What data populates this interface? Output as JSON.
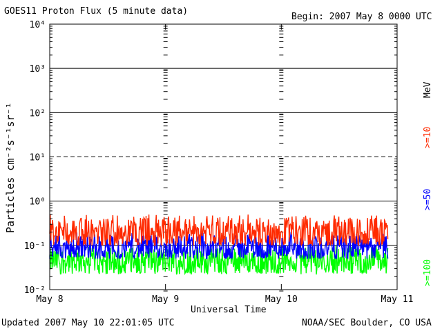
{
  "header": {
    "title": "GOES11 Proton Flux (5 minute data)",
    "begin": "Begin: 2007 May 8 0000 UTC"
  },
  "footer": {
    "updated": "Updated 2007 May 10 22:01:05 UTC",
    "credit": "NOAA/SEC Boulder, CO USA"
  },
  "colors": {
    "ge10": "#ff2a00",
    "ge50": "#0000ff",
    "ge100": "#00ff00",
    "grid": "#000000",
    "background": "#ffffff"
  },
  "chart_data": {
    "type": "line",
    "title": "GOES11 Proton Flux (5 minute data)",
    "xlabel": "Universal Time",
    "ylabel": "Particles cm⁻²s⁻¹sr⁻¹",
    "x_tick_labels": [
      "May 8",
      "May 9",
      "May 10",
      "May 11"
    ],
    "y_tick_labels": [
      "10⁻²",
      "10⁻¹",
      "10⁰",
      "10¹",
      "10²",
      "10³",
      "10⁴"
    ],
    "y_scale": "log",
    "ylim": [
      0.01,
      10000
    ],
    "xlim_days": [
      0,
      3
    ],
    "x_units": "days after 2007-05-08 00:00 UTC",
    "data_end_day": 2.92,
    "unit_label": "MeV",
    "legend_position": "right, vertical",
    "grid": "horizontal lines at each decade; dashed line at 10¹",
    "series": [
      {
        "name": ">=10",
        "color": "#ff2a00",
        "typical": 0.2,
        "low": 0.1,
        "high": 0.5
      },
      {
        "name": ">=50",
        "color": "#0000ff",
        "typical": 0.09,
        "low": 0.05,
        "high": 0.2
      },
      {
        "name": ">=100",
        "color": "#00ff00",
        "typical": 0.045,
        "low": 0.022,
        "high": 0.1
      }
    ]
  }
}
